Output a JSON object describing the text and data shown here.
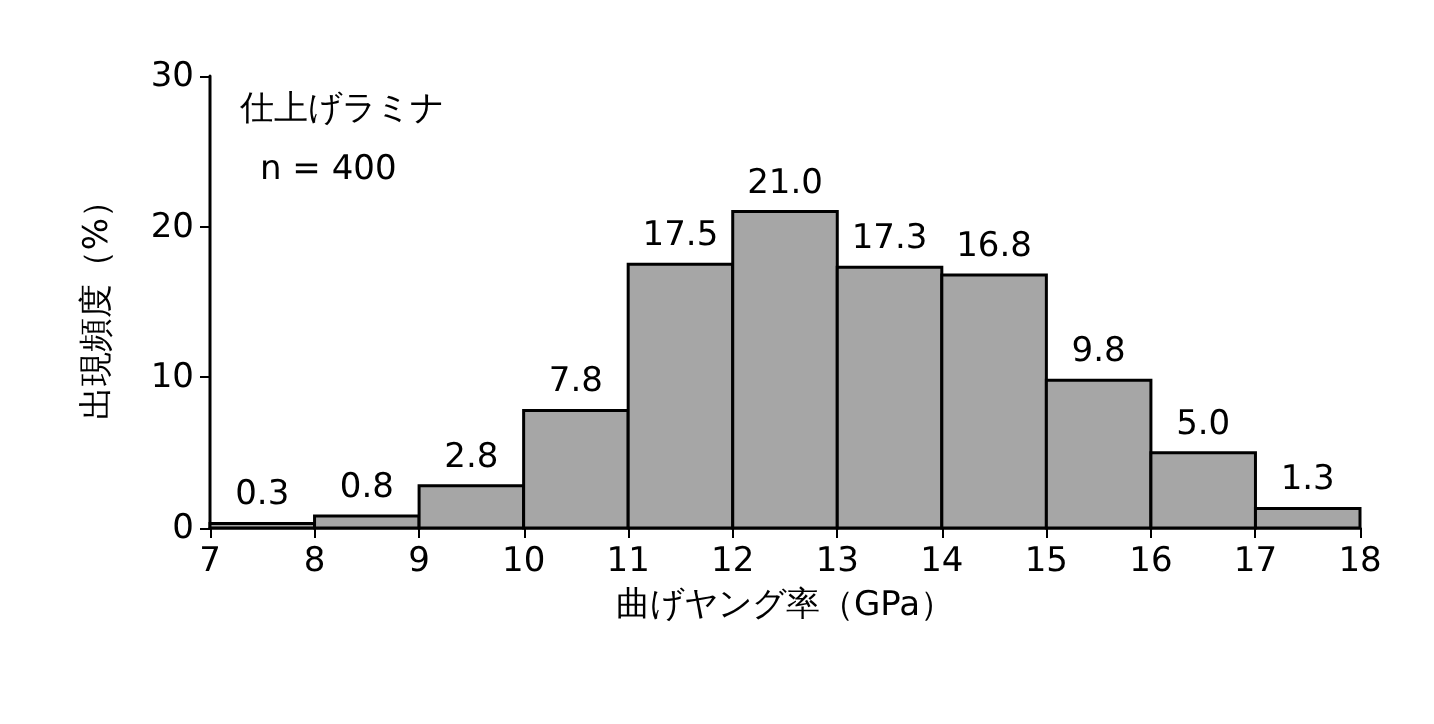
{
  "chart_data": {
    "type": "histogram",
    "xlabel": "曲げヤング率（GPa）",
    "ylabel": "出現頻度（%）",
    "annotations": [
      "仕上げラミナ",
      "n = 400"
    ],
    "bins": [
      7,
      8,
      9,
      10,
      11,
      12,
      13,
      14,
      15,
      16,
      17,
      18
    ],
    "values": [
      0.3,
      0.8,
      2.8,
      7.8,
      17.5,
      21.0,
      17.3,
      16.8,
      9.8,
      5.0,
      1.3
    ],
    "value_labels": [
      "0.3",
      "0.8",
      "2.8",
      "7.8",
      "17.5",
      "21.0",
      "17.3",
      "16.8",
      "9.8",
      "5.0",
      "1.3"
    ],
    "color": "#a6a6a6",
    "xlim": [
      7,
      18
    ],
    "xticks": [
      7,
      8,
      9,
      10,
      11,
      12,
      13,
      14,
      15,
      16,
      17,
      18
    ],
    "ylim": [
      0,
      30
    ],
    "yticks": [
      0,
      10,
      20,
      30
    ],
    "grid": false
  }
}
